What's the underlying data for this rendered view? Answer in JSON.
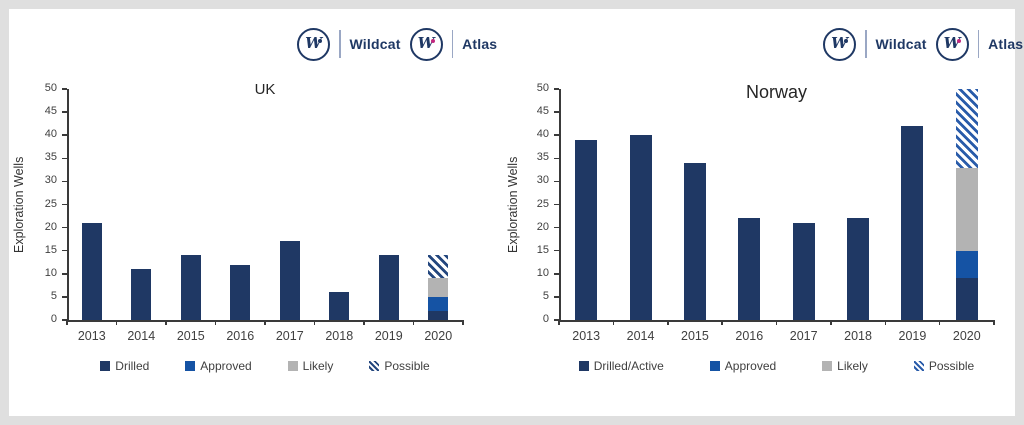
{
  "frame": {
    "background": "#DFDFDF",
    "panel": "#FFFFFF"
  },
  "logo": {
    "monogram": "W",
    "brand": "Wildcat",
    "product": "Atlas",
    "navy": "#1F3864",
    "accent_dot": "#C2267E"
  },
  "chart_data": [
    {
      "type": "bar",
      "stacked": true,
      "title": "UK",
      "xlabel": "",
      "ylabel": "Exploration Wells",
      "ylim": [
        0,
        50
      ],
      "ytick_step": 5,
      "grid": false,
      "legend_position": "bottom",
      "categories": [
        "2013",
        "2014",
        "2015",
        "2016",
        "2017",
        "2018",
        "2019",
        "2020"
      ],
      "series": [
        {
          "name": "Drilled",
          "color": "#1F3864",
          "values": [
            21,
            11,
            14,
            12,
            17,
            6,
            14,
            2
          ]
        },
        {
          "name": "Approved",
          "color": "#1553A4",
          "values": [
            0,
            0,
            0,
            0,
            0,
            0,
            0,
            3
          ]
        },
        {
          "name": "Likely",
          "color": "#B3B3B3",
          "values": [
            0,
            0,
            0,
            0,
            0,
            0,
            0,
            4
          ]
        },
        {
          "name": "Possible",
          "color": "#24477E",
          "pattern": "diagonal-hatch",
          "values": [
            0,
            0,
            0,
            0,
            0,
            0,
            0,
            5
          ]
        }
      ]
    },
    {
      "type": "bar",
      "stacked": true,
      "title": "Norway",
      "xlabel": "",
      "ylabel": "Exploration Wells",
      "ylim": [
        0,
        50
      ],
      "ytick_step": 5,
      "grid": false,
      "legend_position": "bottom",
      "categories": [
        "2013",
        "2014",
        "2015",
        "2016",
        "2017",
        "2018",
        "2019",
        "2020"
      ],
      "series": [
        {
          "name": "Drilled/Active",
          "color": "#1F3864",
          "values": [
            39,
            40,
            34,
            22,
            21,
            22,
            42,
            9
          ]
        },
        {
          "name": "Approved",
          "color": "#1553A4",
          "values": [
            0,
            0,
            0,
            0,
            0,
            0,
            0,
            6
          ]
        },
        {
          "name": "Likely",
          "color": "#B3B3B3",
          "values": [
            0,
            0,
            0,
            0,
            0,
            0,
            0,
            18
          ]
        },
        {
          "name": "Possible",
          "color": "#2A5CAA",
          "pattern": "diagonal-hatch",
          "values": [
            0,
            0,
            0,
            0,
            0,
            0,
            0,
            17
          ]
        }
      ]
    }
  ]
}
